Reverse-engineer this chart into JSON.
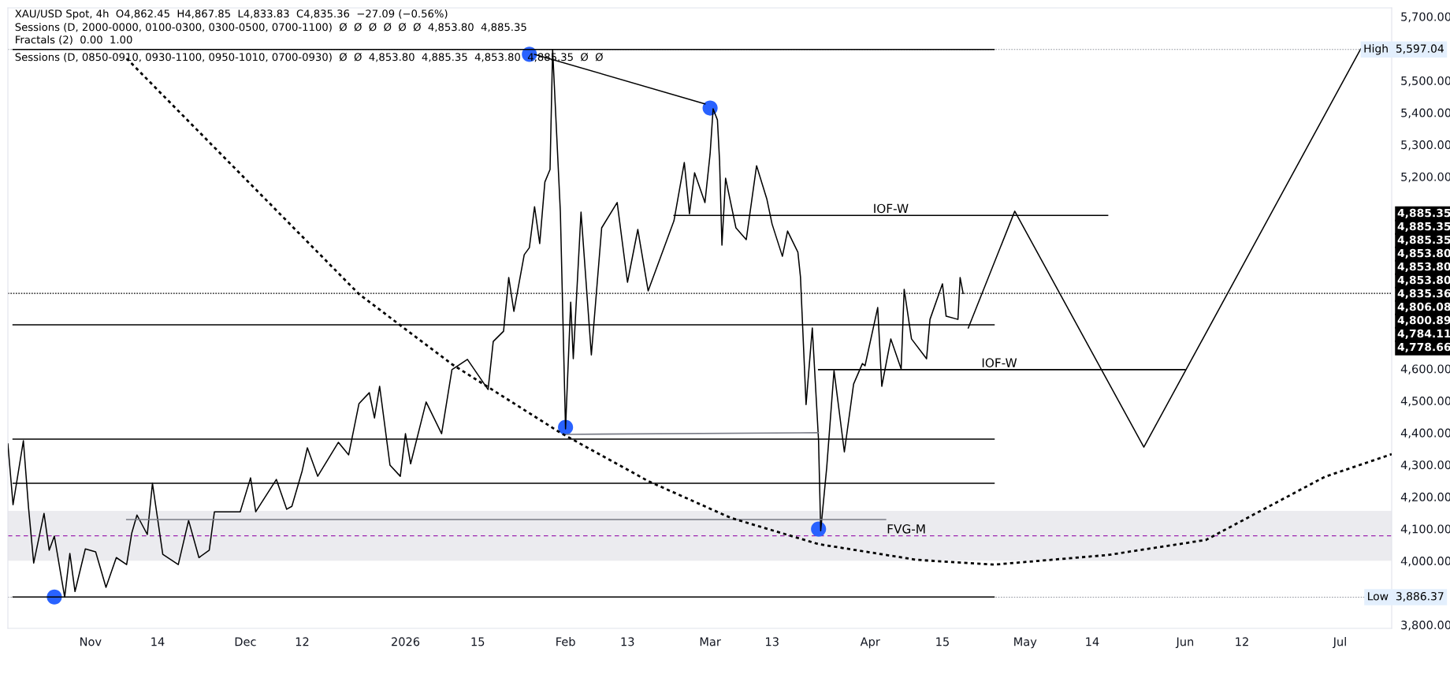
{
  "chart_data": {
    "type": "line",
    "title": "XAU/USD Spot, 4h  O4,862.45  H4,867.85  L4,833.83  C4,835.36  −27.09 (−0.56%)",
    "subtitle": "Sessions (D, 2000-0000, 0100-0300, 0300-0500, 0700-1100)  Ø  Ø  Ø  Ø  Ø  Ø  4,853.80  4,885.35\nFractals (2)  0.00  1.00\nSessions (D, 0850-0910, 0930-1100, 0950-1010, 0700-0930)  Ø  Ø  4,853.80  4,885.35  4,853.80  4,885.35  Ø  Ø",
    "xlim": [
      "2025-10-16",
      "2026-07-11"
    ],
    "xticks": [
      {
        "value": "2025-11-01",
        "label": "Nov"
      },
      {
        "value": "2025-11-14",
        "label": "14"
      },
      {
        "value": "2025-12-01",
        "label": "Dec"
      },
      {
        "value": "2025-12-12",
        "label": "12"
      },
      {
        "value": "2026-01-01",
        "label": "2026"
      },
      {
        "value": "2026-01-15",
        "label": "15"
      },
      {
        "value": "2026-02-01",
        "label": "Feb"
      },
      {
        "value": "2026-02-13",
        "label": "13"
      },
      {
        "value": "2026-03-01",
        "label": "Mar"
      },
      {
        "value": "2026-03-13",
        "label": "13"
      },
      {
        "value": "2026-04-01",
        "label": "Apr"
      },
      {
        "value": "2026-04-15",
        "label": "15"
      },
      {
        "value": "2026-05-01",
        "label": "May"
      },
      {
        "value": "2026-05-14",
        "label": "14"
      },
      {
        "value": "2026-06-01",
        "label": "Jun"
      },
      {
        "value": "2026-06-12",
        "label": "12"
      },
      {
        "value": "2026-07-01",
        "label": "Jul"
      }
    ],
    "ylim": [
      3789,
      5727
    ],
    "yticks": [
      {
        "value": 3800,
        "label": "3,800.00"
      },
      {
        "value": 4000,
        "label": "4,000.00"
      },
      {
        "value": 4100,
        "label": "4,100.00"
      },
      {
        "value": 4200,
        "label": "4,200.00"
      },
      {
        "value": 4300,
        "label": "4,300.00"
      },
      {
        "value": 4400,
        "label": "4,400.00"
      },
      {
        "value": 4500,
        "label": "4,500.00"
      },
      {
        "value": 4600,
        "label": "4,600.00"
      },
      {
        "value": 5200,
        "label": "5,200.00"
      },
      {
        "value": 5300,
        "label": "5,300.00"
      },
      {
        "value": 5400,
        "label": "5,400.00"
      },
      {
        "value": 5500,
        "label": "5,500.00"
      },
      {
        "value": 5700,
        "label": "5,700.00"
      }
    ],
    "grid": false,
    "legend": false,
    "series": [
      {
        "color": "#000000",
        "x": [
          "2025-10-16",
          "2025-10-17",
          "2025-10-19",
          "2025-10-20",
          "2025-10-21",
          "2025-10-23",
          "2025-10-24",
          "2025-10-25",
          "2025-10-27",
          "2025-10-28",
          "2025-10-29",
          "2025-10-31",
          "2025-11-02",
          "2025-11-04",
          "2025-11-06",
          "2025-11-08",
          "2025-11-09",
          "2025-11-10",
          "2025-11-12",
          "2025-11-13",
          "2025-11-15",
          "2025-11-18",
          "2025-11-20",
          "2025-11-22",
          "2025-11-24",
          "2025-11-25",
          "2025-11-30",
          "2025-12-02",
          "2025-12-03",
          "2025-12-07",
          "2025-12-09",
          "2025-12-10",
          "2025-12-12",
          "2025-12-13",
          "2025-12-15",
          "2025-12-19",
          "2025-12-21",
          "2025-12-23",
          "2025-12-25",
          "2025-12-26",
          "2025-12-27",
          "2025-12-29",
          "2025-12-31",
          "2026-01-01",
          "2026-01-02",
          "2026-01-05",
          "2026-01-08",
          "2026-01-10",
          "2026-01-13",
          "2026-01-17",
          "2026-01-18",
          "2026-01-20",
          "2026-01-21",
          "2026-01-22",
          "2026-01-24",
          "2026-01-25",
          "2026-01-26",
          "2026-01-27",
          "2026-01-28",
          "2026-01-29",
          "2026-01-29T12:00",
          "2026-01-31",
          "2026-02-01",
          "2026-02-02",
          "2026-02-02T12:00",
          "2026-02-04",
          "2026-02-06",
          "2026-02-08",
          "2026-02-11",
          "2026-02-13",
          "2026-02-15",
          "2026-02-17",
          "2026-02-22",
          "2026-02-24",
          "2026-02-25",
          "2026-02-26",
          "2026-02-28",
          "2026-03-01",
          "2026-03-01T14:00",
          "2026-03-02T10:00",
          "2026-03-02T20:00",
          "2026-03-03T07:00",
          "2026-03-04",
          "2026-03-06",
          "2026-03-08",
          "2026-03-10",
          "2026-03-12",
          "2026-03-13",
          "2026-03-15",
          "2026-03-16",
          "2026-03-18",
          "2026-03-18T12:00",
          "2026-03-19T14:00",
          "2026-03-20T19:00",
          "2026-03-22",
          "2026-03-22T10:00",
          "2026-03-23T14:00",
          "2026-03-25",
          "2026-03-27",
          "2026-03-28T19:00",
          "2026-03-30T12:00",
          "2026-03-31",
          "2026-04-02T11:00",
          "2026-04-03T06:00",
          "2026-04-05",
          "2026-04-07",
          "2026-04-07T14:00",
          "2026-04-09",
          "2026-04-11T22:00",
          "2026-04-12T14:00",
          "2026-04-15",
          "2026-04-15T17:00",
          "2026-04-18",
          "2026-04-18T10:00",
          "2026-04-19"
        ],
        "values": [
          4365,
          4175,
          4375,
          4166,
          3993,
          4148,
          4033,
          4077,
          3886.37,
          4023,
          3904,
          4037,
          4028,
          3917,
          4010,
          3988,
          4087,
          4143,
          4082,
          4242,
          4020,
          3988,
          4126,
          4010,
          4033,
          4153,
          4153,
          4259,
          4153,
          4254,
          4161,
          4170,
          4281,
          4353,
          4264,
          4370,
          4331,
          4491,
          4525,
          4446,
          4545,
          4299,
          4264,
          4397,
          4303,
          4496,
          4397,
          4597,
          4629,
          4535,
          4685,
          4717,
          4885,
          4779,
          4956,
          4978,
          5106,
          4991,
          5183,
          5222,
          5597.04,
          5089,
          4412,
          4808,
          4631,
          5089,
          4643,
          5040,
          5119,
          4870,
          5035,
          4843,
          5062,
          5244,
          5084,
          5212,
          5119,
          5271,
          5412,
          5377,
          5249,
          4986,
          5195,
          5040,
          5003,
          5234,
          5129,
          5052,
          4951,
          5030,
          4964,
          4887,
          4488,
          4727,
          4377,
          4094,
          4291,
          4594,
          4340,
          4552,
          4616,
          4609,
          4791,
          4545,
          4693,
          4599,
          4848,
          4693,
          4631,
          4754,
          4865,
          4764,
          4754,
          4885,
          4835.36
        ]
      },
      {
        "type": "scatter",
        "marker": "circle",
        "color": "#2962ff",
        "x": [
          "2025-10-25",
          "2026-01-25",
          "2026-03-01",
          "2026-02-01",
          "2026-03-22"
        ],
        "values": [
          3887,
          5582,
          5414,
          4417,
          4099
        ]
      },
      {
        "color": "#000000",
        "x": [
          "2026-01-26",
          "2026-02-28"
        ],
        "values": [
          5582,
          5427
        ]
      },
      {
        "color": "#787b86",
        "x": [
          "2026-02-01",
          "2026-03-22"
        ],
        "values": [
          4395,
          4400
        ]
      },
      {
        "color": "#787b86",
        "x": [
          "2025-11-08",
          "2026-04-04"
        ],
        "values": [
          4129,
          4129
        ]
      },
      {
        "color": "#000000",
        "x": [
          "2025-10-17",
          "2026-04-25"
        ],
        "values": [
          5597.04,
          5597.04
        ]
      },
      {
        "color": "#000000",
        "x": [
          "2025-10-17",
          "2026-04-25"
        ],
        "values": [
          4737,
          4737
        ]
      },
      {
        "color": "#000000",
        "x": [
          "2026-02-22",
          "2026-05-17"
        ],
        "values": [
          5079,
          5079
        ]
      },
      {
        "color": "#000000",
        "x": [
          "2026-03-22",
          "2026-06-01"
        ],
        "values": [
          4597,
          4597
        ]
      },
      {
        "color": "#000000",
        "x": [
          "2025-10-17",
          "2026-04-25"
        ],
        "values": [
          4380,
          4380
        ]
      },
      {
        "color": "#000000",
        "x": [
          "2025-10-17",
          "2026-04-25"
        ],
        "values": [
          4242,
          4242
        ]
      },
      {
        "color": "#000000",
        "x": [
          "2025-10-17",
          "2026-04-25"
        ],
        "values": [
          3887,
          3887
        ]
      },
      {
        "color": "#000000",
        "x": [
          "2026-04-20",
          "2026-04-29",
          "2026-05-24",
          "2026-07-05"
        ],
        "values": [
          4727,
          5092,
          4355,
          5599
        ]
      },
      {
        "color": "#000000",
        "line_style": "dotted",
        "x": [
          "2025-11-08",
          "2025-12-23",
          "2026-01-10",
          "2026-01-31",
          "2026-02-17",
          "2026-03-05",
          "2026-03-22",
          "2026-04-10",
          "2026-04-25",
          "2026-05-17",
          "2026-06-05",
          "2026-06-28",
          "2026-07-11"
        ],
        "values": [
          5569,
          4833,
          4614,
          4400,
          4249,
          4134,
          4052,
          4003,
          3988,
          4018,
          4065,
          4262,
          4333
        ]
      }
    ],
    "bands": [
      {
        "axis": "y",
        "from": 4000,
        "to": 4156,
        "color": "#ebebef"
      }
    ],
    "ref_lines": [
      {
        "axis": "y",
        "value": 5597.04,
        "label": "High  5,597.04",
        "line_style": "dotted",
        "color": "#9598a1"
      },
      {
        "axis": "y",
        "value": 3886.37,
        "label": "Low  3,886.37",
        "line_style": "dotted",
        "color": "#9598a1"
      },
      {
        "axis": "y",
        "value": 4835.36,
        "line_style": "dotted",
        "color": "#000000"
      },
      {
        "axis": "y",
        "value": 4078,
        "line_style": "dashed",
        "color": "#9c27b0"
      }
    ],
    "annotations": [
      {
        "text": "IOF-W",
        "x": "2026-04-05",
        "y": 5079
      },
      {
        "text": "IOF-W",
        "x": "2026-04-26",
        "y": 4597
      },
      {
        "text": "FVG-M",
        "x": "2026-04-08",
        "y": 4078
      },
      "4,885.35",
      "4,885.35",
      "4,885.35",
      "4,853.80",
      "4,853.80",
      "4,853.80",
      "4,835.36",
      "4,806.08",
      "4,800.89",
      "4,784.11",
      "4,778.66"
    ]
  }
}
